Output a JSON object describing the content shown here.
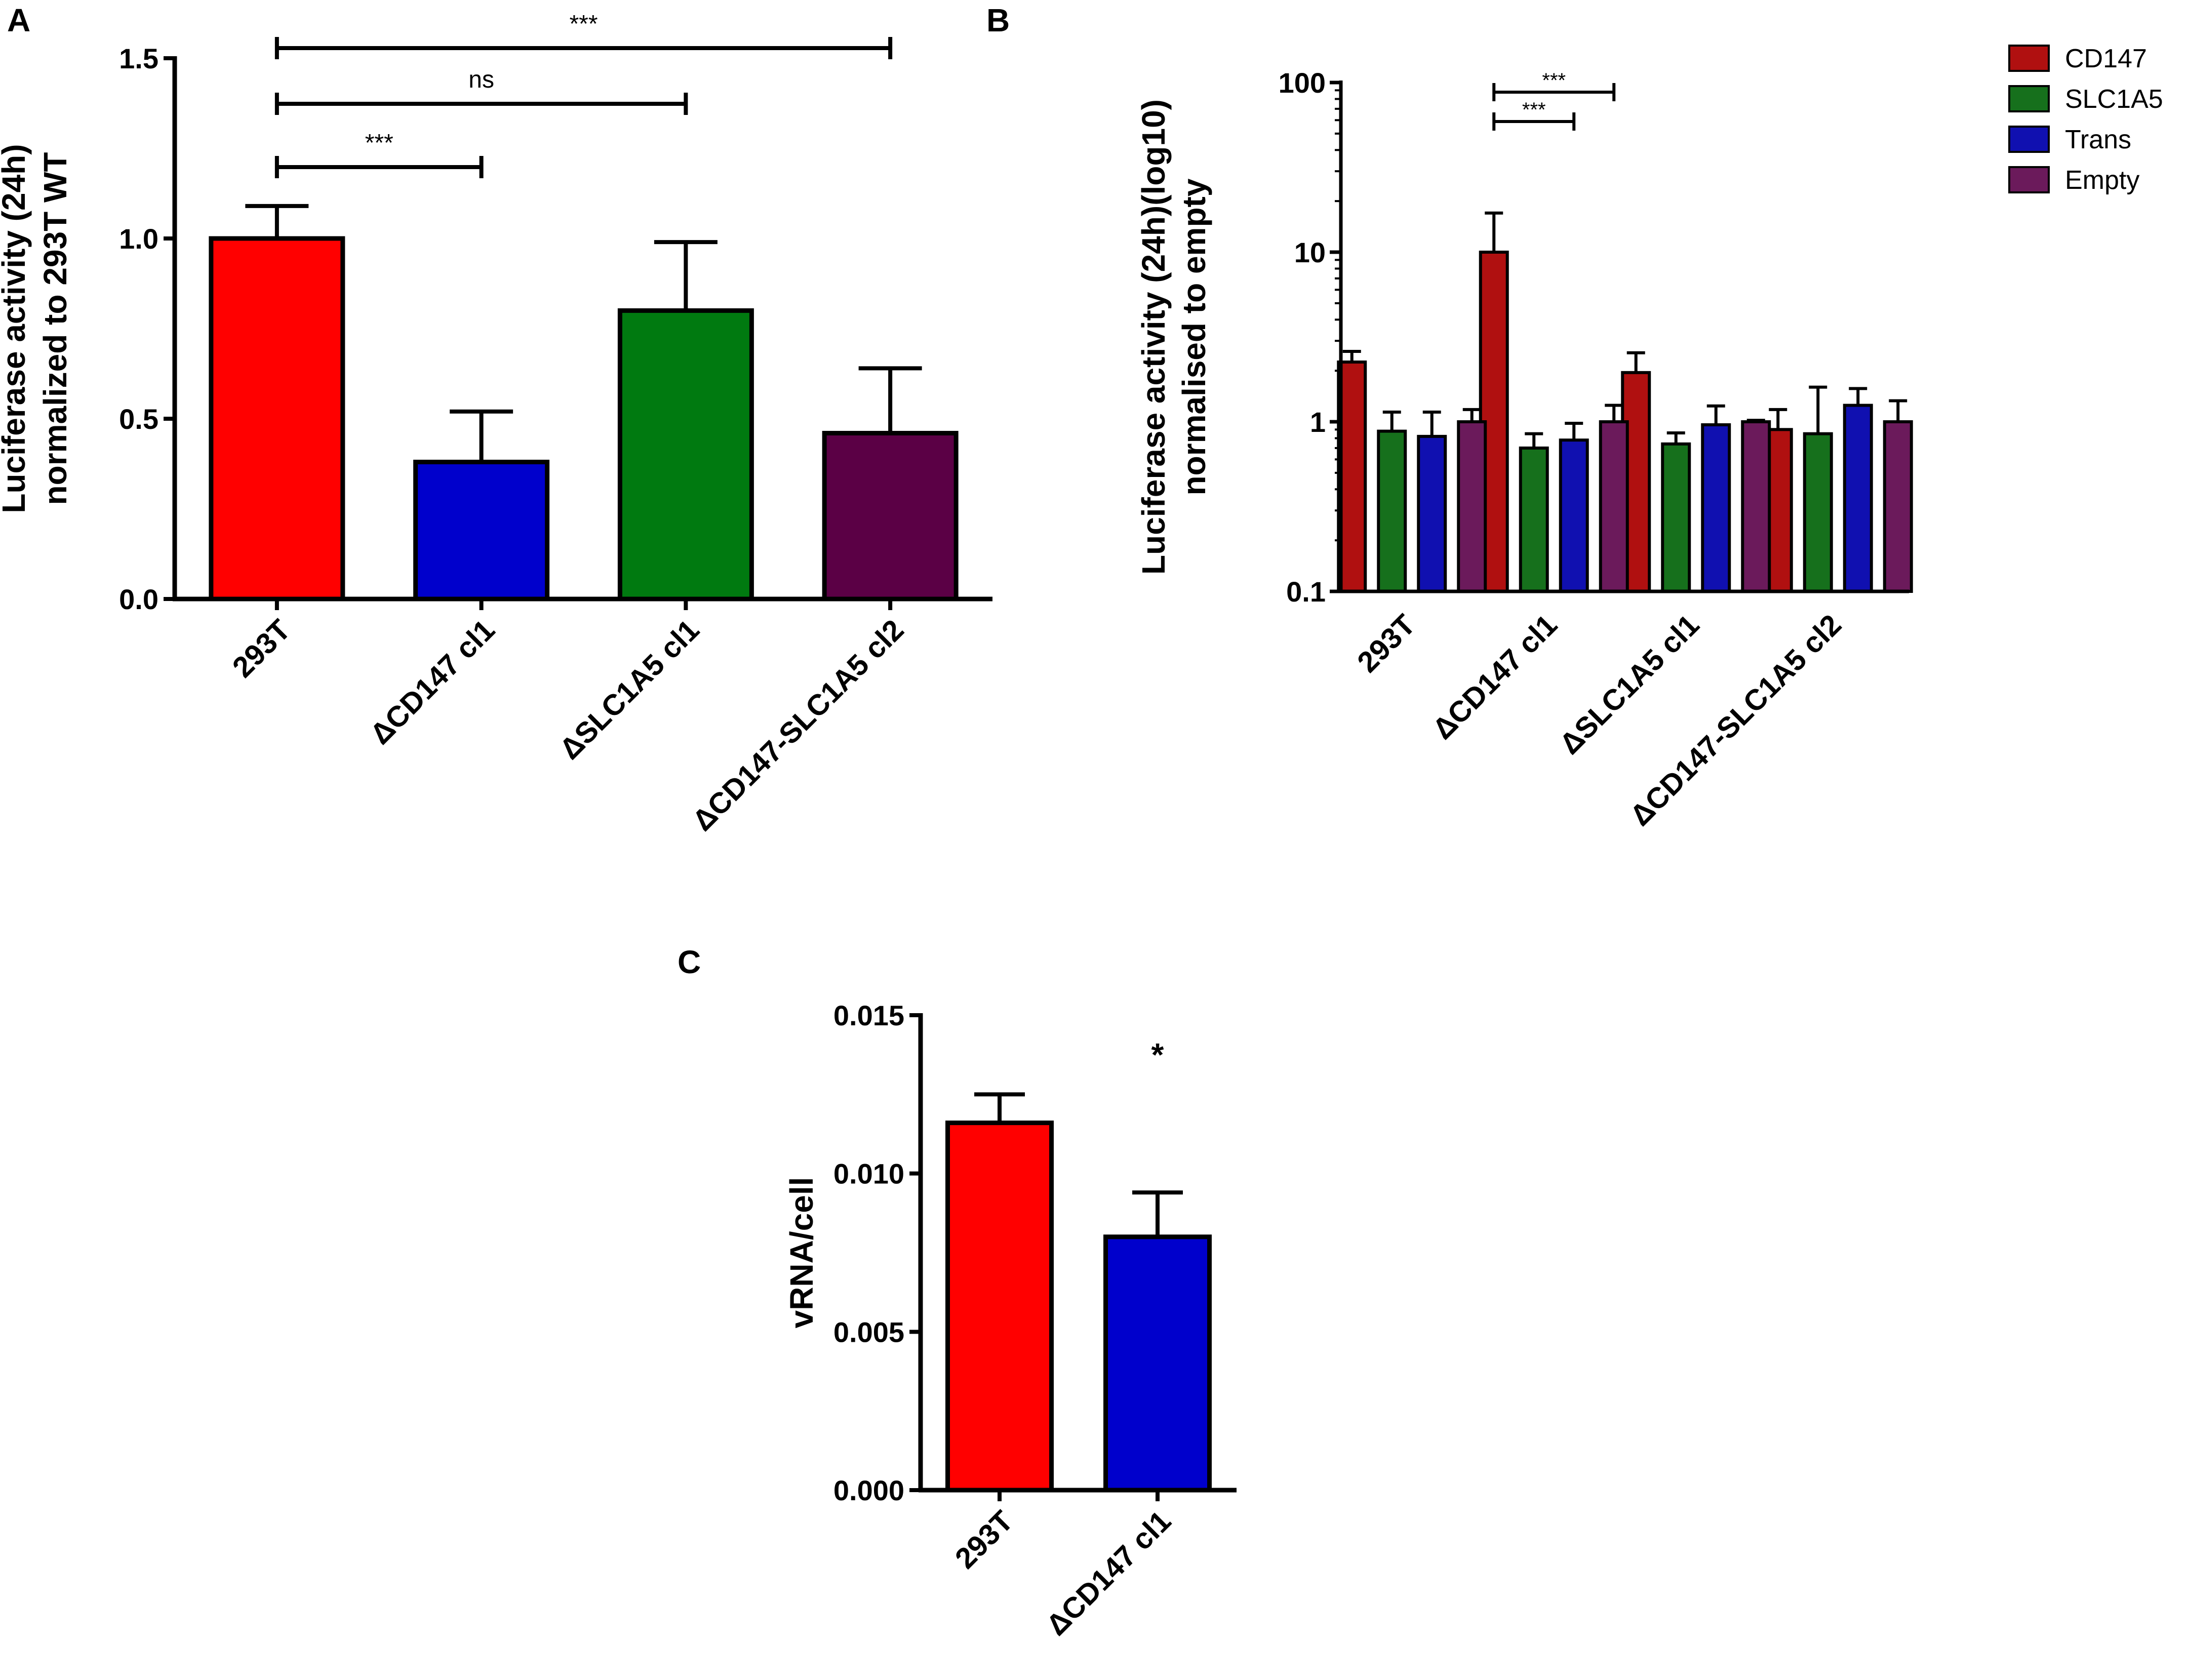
{
  "figure": {
    "panels": [
      "A",
      "B",
      "C"
    ]
  },
  "chart_data": [
    {
      "id": "A",
      "type": "bar",
      "title": "",
      "xlabel": "",
      "ylabel_lines": [
        "Luciferase activity (24h)",
        "normalized to 293T WT"
      ],
      "ylim": [
        0,
        1.5
      ],
      "yticks": [
        0,
        0.5,
        1.0,
        1.5
      ],
      "ytick_labels": [
        "0.0",
        "0.5",
        "1.0",
        "1.5"
      ],
      "categories": [
        "293T",
        "ΔCD147 cl1",
        "ΔSLC1A5 cl1",
        "ΔCD147-SLC1A5 cl2"
      ],
      "values": [
        1.0,
        0.38,
        0.8,
        0.46
      ],
      "errors": [
        0.09,
        0.14,
        0.19,
        0.18
      ],
      "colors": [
        "#ff0000",
        "#0000cc",
        "#007a10",
        "#5b0045"
      ],
      "significance": [
        {
          "from": 0,
          "to": 1,
          "label": "***"
        },
        {
          "from": 0,
          "to": 2,
          "label": "ns"
        },
        {
          "from": 0,
          "to": 3,
          "label": "***"
        }
      ]
    },
    {
      "id": "B",
      "type": "bar",
      "title": "",
      "xlabel": "",
      "ylabel_lines": [
        "Luciferase activity (24h)(log10)",
        "normalised to empty"
      ],
      "yscale": "log10",
      "ylim": [
        0.1,
        100
      ],
      "yticks": [
        0.1,
        1,
        10,
        100
      ],
      "ytick_labels": [
        "0.1",
        "1",
        "10",
        "100"
      ],
      "categories": [
        "293T",
        "ΔCD147 cl1",
        "ΔSLC1A5 cl1",
        "ΔCD147-SLC1A5 cl2"
      ],
      "legend_position": "top-right",
      "series": [
        {
          "name": "CD147",
          "color": "#b01010",
          "values": [
            2.25,
            10.0,
            1.95,
            0.9
          ],
          "errors": [
            0.35,
            7.0,
            0.6,
            0.28
          ]
        },
        {
          "name": "SLC1A5",
          "color": "#16701c",
          "values": [
            0.88,
            0.7,
            0.74,
            0.85
          ],
          "errors": [
            0.26,
            0.15,
            0.12,
            0.75
          ]
        },
        {
          "name": "Trans",
          "color": "#1010b0",
          "values": [
            0.82,
            0.78,
            0.96,
            1.25
          ],
          "errors": [
            0.32,
            0.2,
            0.28,
            0.32
          ]
        },
        {
          "name": "Empty",
          "color": "#6b1a5b",
          "values": [
            1.0,
            1.0,
            1.0,
            1.0
          ],
          "errors": [
            0.18,
            0.25,
            0.02,
            0.33
          ]
        }
      ],
      "significance": [
        {
          "group": 1,
          "from_series": 0,
          "to_series": 3,
          "label": "***"
        },
        {
          "group": 1,
          "from_series": 0,
          "to_series": 2,
          "label": "***"
        }
      ]
    },
    {
      "id": "C",
      "type": "bar",
      "title": "",
      "xlabel": "",
      "ylabel_lines": [
        "vRNA/cell"
      ],
      "ylim": [
        0,
        0.015
      ],
      "yticks": [
        0,
        0.005,
        0.01,
        0.015
      ],
      "ytick_labels": [
        "0.000",
        "0.005",
        "0.010",
        "0.015"
      ],
      "categories": [
        "293T",
        "ΔCD147 cl1"
      ],
      "values": [
        0.0116,
        0.008
      ],
      "errors": [
        0.0009,
        0.0014
      ],
      "colors": [
        "#ff0000",
        "#0000cc"
      ],
      "significance": [
        {
          "bar": 1,
          "label": "*"
        }
      ]
    }
  ]
}
